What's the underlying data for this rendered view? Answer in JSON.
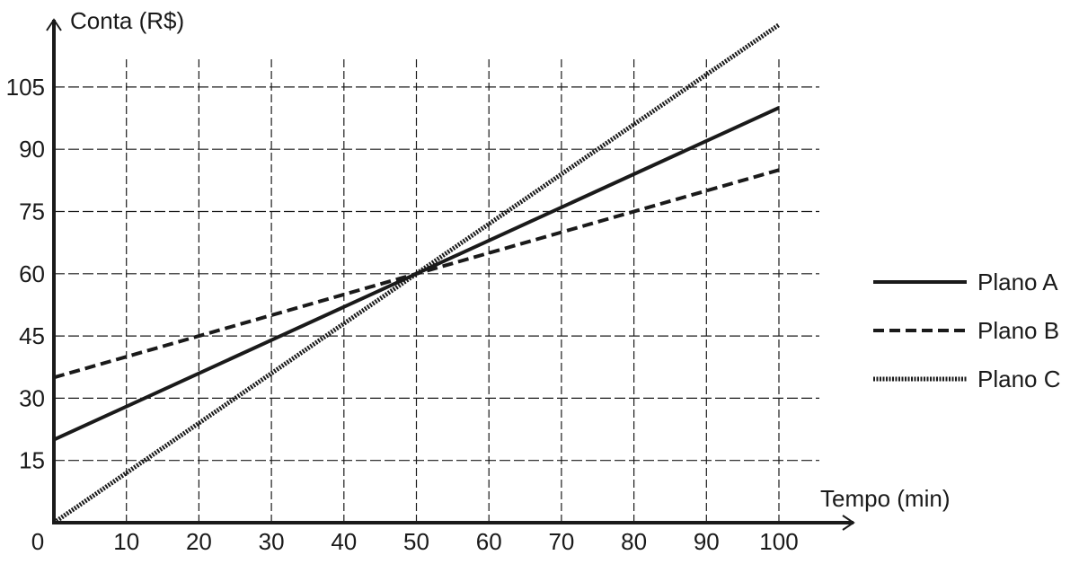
{
  "chart_data": {
    "type": "line",
    "title": "",
    "xlabel": "Tempo (min)",
    "ylabel": "Conta (R$)",
    "origin_label": "0",
    "xlim": [
      0,
      100
    ],
    "ylim": [
      0,
      112
    ],
    "x_ticks": [
      10,
      20,
      30,
      40,
      50,
      60,
      70,
      80,
      90,
      100
    ],
    "y_ticks": [
      15,
      30,
      45,
      60,
      75,
      90,
      105
    ],
    "grid": true,
    "legend_position": "right",
    "series": [
      {
        "name": "Plano A",
        "style": "solid",
        "x": [
          0,
          100
        ],
        "y": [
          20,
          100
        ]
      },
      {
        "name": "Plano B",
        "style": "dashed",
        "x": [
          0,
          100
        ],
        "y": [
          35,
          85
        ]
      },
      {
        "name": "Plano C",
        "style": "dotted",
        "x": [
          0,
          100
        ],
        "y": [
          0,
          120
        ]
      }
    ],
    "line_color": "#1a1a1a"
  }
}
